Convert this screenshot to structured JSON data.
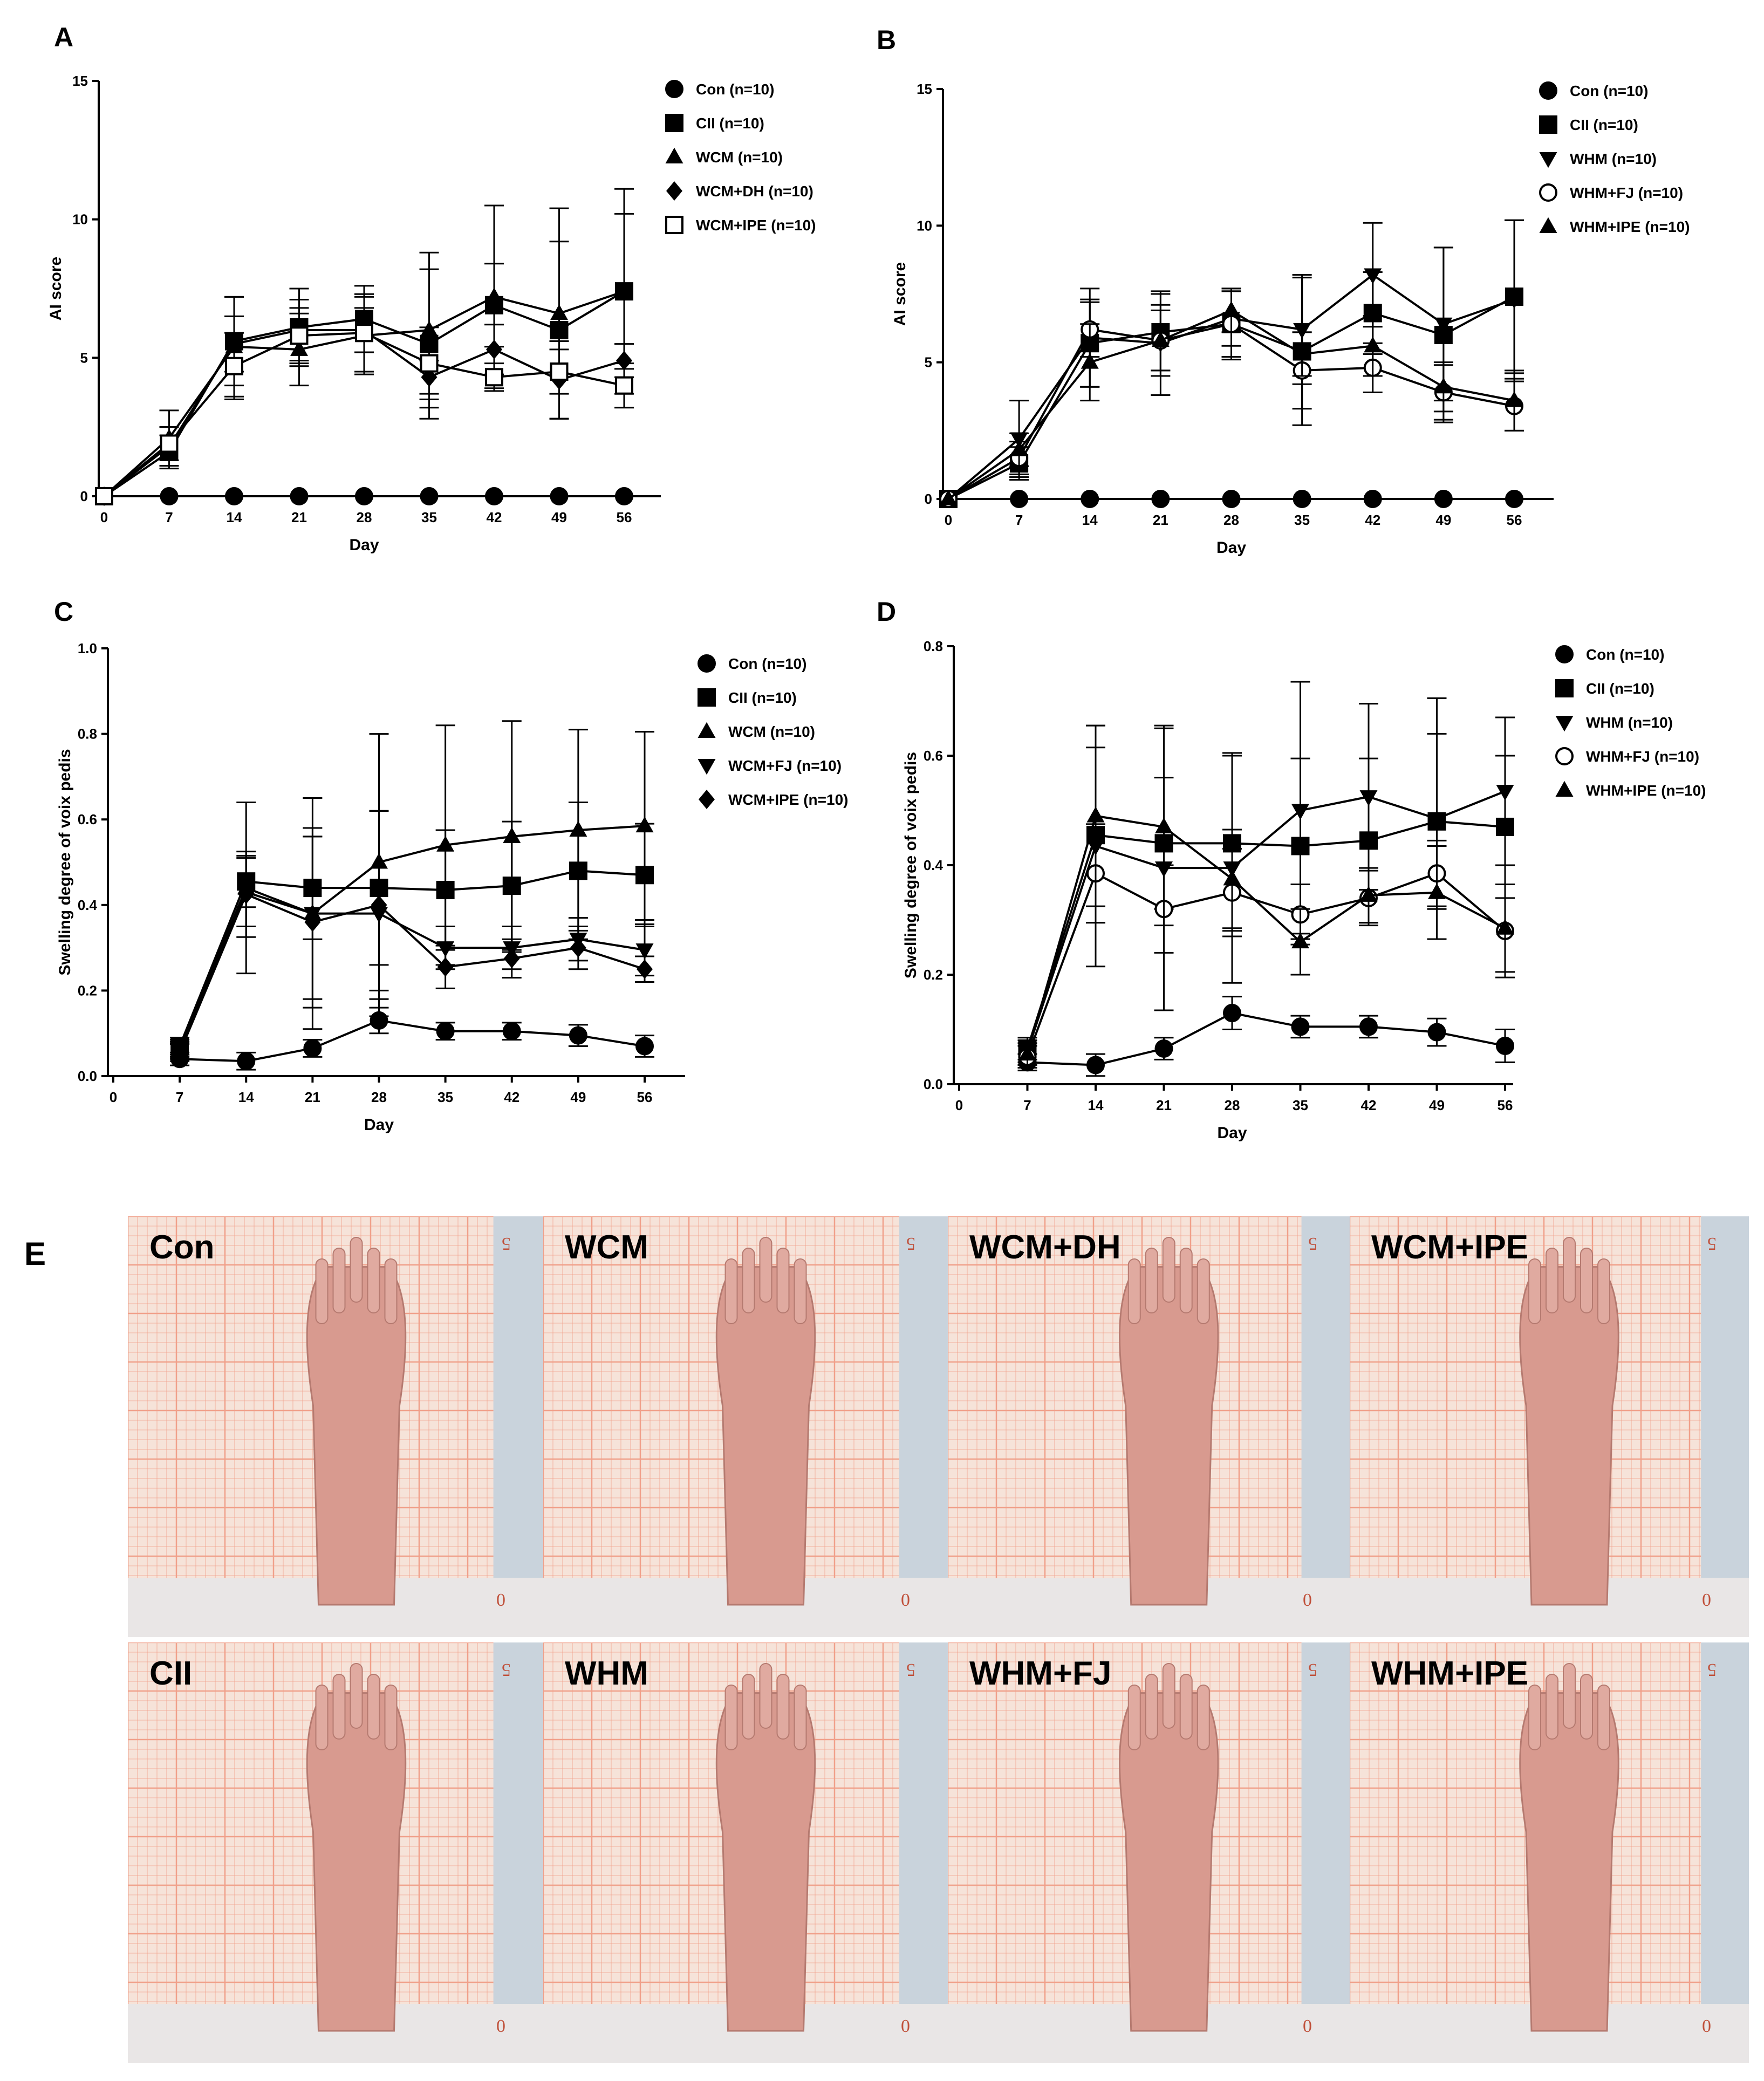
{
  "panels": {
    "A": "A",
    "B": "B",
    "C": "C",
    "D": "D",
    "E": "E"
  },
  "chart_data": [
    {
      "id": "A",
      "type": "line",
      "xlabel": "Day",
      "ylabel": "AI score",
      "x": [
        0,
        7,
        14,
        21,
        28,
        35,
        42,
        49,
        56
      ],
      "xticks": [
        0,
        7,
        14,
        21,
        28,
        35,
        42,
        49,
        56
      ],
      "yticks": [
        0,
        5,
        10,
        15
      ],
      "ylim": [
        0,
        15
      ],
      "legend_position": "right",
      "series": [
        {
          "name": "Con (n=10)",
          "marker": "circle-filled",
          "values": [
            0,
            0,
            0,
            0,
            0,
            0,
            0,
            0,
            0
          ],
          "err": [
            0,
            0,
            0,
            0,
            0,
            0,
            0,
            0,
            0
          ]
        },
        {
          "name": "CII (n=10)",
          "marker": "square-filled",
          "values": [
            0,
            1.6,
            5.6,
            6.1,
            6.4,
            5.5,
            6.9,
            6.0,
            7.4
          ],
          "err": [
            0,
            0.6,
            1.6,
            1.4,
            1.2,
            2.7,
            1.5,
            3.2,
            3.7
          ]
        },
        {
          "name": "WCM (n=10)",
          "marker": "triangle-up-filled",
          "values": [
            0,
            2.1,
            5.4,
            5.3,
            5.8,
            6.0,
            7.2,
            6.6,
            7.4
          ],
          "err": [
            0,
            1.0,
            1.8,
            1.3,
            1.4,
            2.8,
            3.3,
            3.8,
            2.8
          ]
        },
        {
          "name": "WCM+DH (n=10)",
          "marker": "diamond-filled",
          "values": [
            0,
            1.8,
            5.5,
            6.0,
            6.0,
            4.3,
            5.3,
            4.2,
            4.9
          ],
          "err": [
            0,
            0.7,
            1.0,
            1.1,
            0.8,
            0.6,
            0.9,
            1.4,
            0.6
          ]
        },
        {
          "name": "WCM+IPE (n=10)",
          "marker": "square-open",
          "values": [
            0,
            1.9,
            4.7,
            5.8,
            5.9,
            4.8,
            4.3,
            4.5,
            4.0
          ],
          "err": [
            0,
            0.6,
            1.2,
            1.0,
            1.4,
            1.3,
            0.5,
            0.8,
            0.8
          ]
        }
      ]
    },
    {
      "id": "B",
      "type": "line",
      "xlabel": "Day",
      "ylabel": "AI score",
      "x": [
        0,
        7,
        14,
        21,
        28,
        35,
        42,
        49,
        56
      ],
      "xticks": [
        0,
        7,
        14,
        21,
        28,
        35,
        42,
        49,
        56
      ],
      "yticks": [
        0,
        5,
        10,
        15
      ],
      "ylim": [
        0,
        15
      ],
      "legend_position": "right",
      "series": [
        {
          "name": "Con (n=10)",
          "marker": "circle-filled",
          "values": [
            0,
            0,
            0,
            0,
            0,
            0,
            0,
            0,
            0
          ],
          "err": [
            0,
            0,
            0,
            0,
            0,
            0,
            0,
            0,
            0
          ]
        },
        {
          "name": "CII (n=10)",
          "marker": "square-filled",
          "values": [
            0,
            1.3,
            5.7,
            6.1,
            6.4,
            5.4,
            6.8,
            6.0,
            7.4
          ],
          "err": [
            0,
            0.6,
            1.6,
            1.4,
            1.2,
            2.7,
            1.5,
            3.2,
            2.8
          ]
        },
        {
          "name": "WHM (n=10)",
          "marker": "triangle-down-filled",
          "values": [
            0,
            2.2,
            5.9,
            5.7,
            6.6,
            6.2,
            8.2,
            6.4,
            7.3
          ],
          "err": [
            0,
            1.4,
            1.8,
            1.9,
            1.0,
            2.0,
            1.9,
            2.8,
            2.9
          ]
        },
        {
          "name": "WHM+FJ (n=10)",
          "marker": "circle-open",
          "values": [
            0,
            1.5,
            6.2,
            5.8,
            6.4,
            4.7,
            4.8,
            3.9,
            3.4
          ],
          "err": [
            0,
            0.6,
            1.0,
            1.1,
            1.3,
            1.4,
            0.9,
            1.0,
            0.9
          ]
        },
        {
          "name": "WHM+IPE (n=10)",
          "marker": "triangle-up-filled",
          "values": [
            0,
            1.8,
            5.0,
            5.8,
            6.9,
            5.3,
            5.6,
            4.1,
            3.6
          ],
          "err": [
            0,
            0.6,
            1.4,
            1.3,
            0.8,
            0.8,
            1.1,
            0.9,
            1.1
          ]
        }
      ]
    },
    {
      "id": "C",
      "type": "line",
      "xlabel": "Day",
      "ylabel": "Swelling degree of voix pedis",
      "x": [
        7,
        14,
        21,
        28,
        35,
        42,
        49,
        56
      ],
      "xticks": [
        0,
        7,
        14,
        21,
        28,
        35,
        42,
        49,
        56
      ],
      "yticks": [
        0.0,
        0.2,
        0.4,
        0.6,
        0.8,
        1.0
      ],
      "ylim": [
        0,
        1.0
      ],
      "legend_position": "right",
      "series": [
        {
          "name": "Con (n=10)",
          "marker": "circle-filled",
          "values": [
            0.04,
            0.035,
            0.065,
            0.13,
            0.105,
            0.105,
            0.095,
            0.07
          ],
          "err": [
            0.015,
            0.02,
            0.02,
            0.03,
            0.02,
            0.02,
            0.025,
            0.025
          ]
        },
        {
          "name": "CII (n=10)",
          "marker": "square-filled",
          "values": [
            0.07,
            0.455,
            0.44,
            0.44,
            0.435,
            0.445,
            0.48,
            0.47
          ],
          "err": [
            0.02,
            0.06,
            0.12,
            0.18,
            0.14,
            0.15,
            0.16,
            0.12
          ]
        },
        {
          "name": "WCM (n=10)",
          "marker": "triangle-up-filled",
          "values": [
            0.065,
            0.44,
            0.38,
            0.5,
            0.54,
            0.56,
            0.575,
            0.585
          ],
          "err": [
            0.02,
            0.2,
            0.27,
            0.3,
            0.28,
            0.27,
            0.235,
            0.22
          ]
        },
        {
          "name": "WCM+FJ (n=10)",
          "marker": "triangle-down-filled",
          "values": [
            0.06,
            0.43,
            0.38,
            0.38,
            0.3,
            0.3,
            0.32,
            0.295
          ],
          "err": [
            0.02,
            0.08,
            0.2,
            0.24,
            0.05,
            0.05,
            0.05,
            0.06
          ]
        },
        {
          "name": "WCM+IPE (n=10)",
          "marker": "diamond-filled",
          "values": [
            0.055,
            0.425,
            0.36,
            0.4,
            0.255,
            0.275,
            0.3,
            0.25
          ],
          "err": [
            0.02,
            0.1,
            0.2,
            0.22,
            0.05,
            0.045,
            0.05,
            0.03
          ]
        }
      ]
    },
    {
      "id": "D",
      "type": "line",
      "xlabel": "Day",
      "ylabel": "Swelling degree of voix pedis",
      "x": [
        7,
        14,
        21,
        28,
        35,
        42,
        49,
        56
      ],
      "xticks": [
        0,
        7,
        14,
        21,
        28,
        35,
        42,
        49,
        56
      ],
      "yticks": [
        0.0,
        0.2,
        0.4,
        0.6,
        0.8
      ],
      "ylim": [
        0,
        0.8
      ],
      "legend_position": "right",
      "series": [
        {
          "name": "Con (n=10)",
          "marker": "circle-filled",
          "values": [
            0.04,
            0.035,
            0.065,
            0.13,
            0.105,
            0.105,
            0.095,
            0.07
          ],
          "err": [
            0.015,
            0.02,
            0.02,
            0.03,
            0.02,
            0.02,
            0.025,
            0.03
          ]
        },
        {
          "name": "CII (n=10)",
          "marker": "square-filled",
          "values": [
            0.065,
            0.455,
            0.44,
            0.44,
            0.435,
            0.445,
            0.48,
            0.47
          ],
          "err": [
            0.02,
            0.16,
            0.12,
            0.16,
            0.16,
            0.15,
            0.16,
            0.13
          ]
        },
        {
          "name": "WHM (n=10)",
          "marker": "triangle-down-filled",
          "values": [
            0.06,
            0.435,
            0.395,
            0.395,
            0.5,
            0.525,
            0.485,
            0.535
          ],
          "err": [
            0.02,
            0.22,
            0.26,
            0.21,
            0.235,
            0.17,
            0.22,
            0.135
          ]
        },
        {
          "name": "WHM+FJ (n=10)",
          "marker": "circle-open",
          "values": [
            0.05,
            0.385,
            0.32,
            0.35,
            0.31,
            0.34,
            0.385,
            0.28
          ],
          "err": [
            0.02,
            0.09,
            0.08,
            0.08,
            0.055,
            0.05,
            0.06,
            0.085
          ]
        },
        {
          "name": "WHM+IPE (n=10)",
          "marker": "triangle-up-filled",
          "values": [
            0.055,
            0.49,
            0.47,
            0.375,
            0.26,
            0.345,
            0.35,
            0.285
          ],
          "err": [
            0.02,
            0.165,
            0.18,
            0.09,
            0.06,
            0.05,
            0.085,
            0.08
          ]
        }
      ]
    }
  ],
  "photos": {
    "top": [
      "Con",
      "WCM",
      "WCM+DH",
      "WCM+IPE"
    ],
    "bottom": [
      "CII",
      "WHM",
      "WHM+FJ",
      "WHM+IPE"
    ],
    "ruler_mark_top": "5",
    "ruler_mark_bottom": "0",
    "colors": {
      "paper": "#f6e3d9",
      "grid": "#f0a08a",
      "skin": "#d89a8f",
      "fur": "#e9e6e6",
      "wall": "#c9d3dc"
    }
  }
}
